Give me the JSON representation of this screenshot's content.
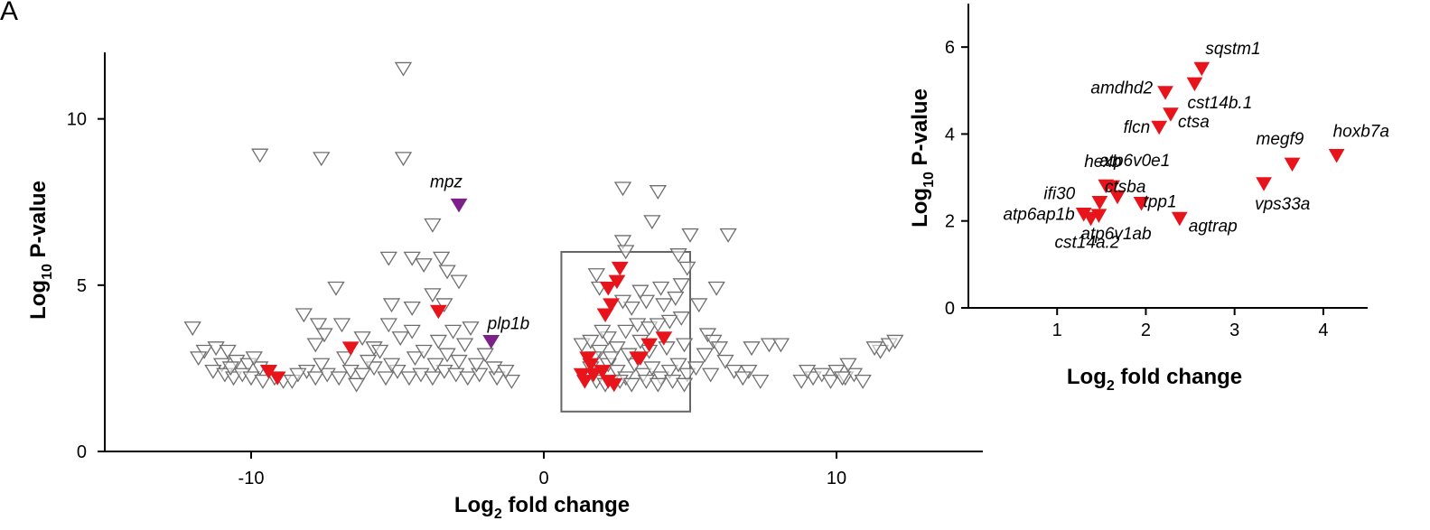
{
  "panel_label": "A",
  "chart_data": [
    {
      "type": "scatter",
      "title": "",
      "xlabel": {
        "main": "Log",
        "sub": "2",
        "rest": " fold change"
      },
      "ylabel": {
        "main": "Log",
        "sub": "10",
        "rest": " P-value"
      },
      "xlim": [
        -15,
        15
      ],
      "ylim": [
        0,
        12
      ],
      "xticks": [
        -10,
        0,
        10
      ],
      "xtick_labels": [
        "-10",
        "0",
        "10"
      ],
      "yticks": [
        0,
        5,
        10
      ],
      "ytick_labels": [
        "0",
        "5",
        "10"
      ],
      "highlight_box": {
        "x": [
          0.6,
          5.0
        ],
        "y": [
          1.2,
          6.0
        ]
      },
      "series": [
        {
          "marker": "open-triangle-down",
          "color": "#6e6e6e",
          "points": [
            [
              -4.8,
              11.5
            ],
            [
              -9.7,
              8.9
            ],
            [
              -7.6,
              8.8
            ],
            [
              -4.8,
              8.8
            ],
            [
              -3.8,
              6.8
            ],
            [
              -5.3,
              5.8
            ],
            [
              -4.5,
              5.8
            ],
            [
              -3.5,
              5.8
            ],
            [
              -3.3,
              5.4
            ],
            [
              -4.1,
              5.6
            ],
            [
              -2.9,
              5.1
            ],
            [
              -7.1,
              4.9
            ],
            [
              -3.8,
              4.7
            ],
            [
              -5.2,
              4.4
            ],
            [
              -4.5,
              4.3
            ],
            [
              -3.4,
              4.4
            ],
            [
              -8.2,
              4.1
            ],
            [
              -6.9,
              3.8
            ],
            [
              -7.7,
              3.8
            ],
            [
              -5.3,
              3.8
            ],
            [
              -4.5,
              3.6
            ],
            [
              -3.1,
              3.6
            ],
            [
              -2.5,
              3.7
            ],
            [
              -7.5,
              3.5
            ],
            [
              -6.2,
              3.4
            ],
            [
              -4.9,
              3.4
            ],
            [
              -3.6,
              3.3
            ],
            [
              -2.7,
              3.2
            ],
            [
              -7.8,
              3.2
            ],
            [
              -5.8,
              3.1
            ],
            [
              -12.0,
              3.7
            ],
            [
              -11.6,
              3.0
            ],
            [
              -11.2,
              3.1
            ],
            [
              -10.8,
              3.0
            ],
            [
              -11.8,
              2.8
            ],
            [
              -11.0,
              2.6
            ],
            [
              -10.5,
              2.7
            ],
            [
              -10.1,
              2.6
            ],
            [
              -9.7,
              2.5
            ],
            [
              -9.4,
              2.4
            ],
            [
              -11.3,
              2.4
            ],
            [
              -10.9,
              2.3
            ],
            [
              -10.6,
              2.2
            ],
            [
              -10.3,
              2.3
            ],
            [
              -10.0,
              2.2
            ],
            [
              -9.6,
              2.1
            ],
            [
              -9.2,
              2.2
            ],
            [
              -8.9,
              2.1
            ],
            [
              -8.6,
              2.1
            ],
            [
              -9.9,
              2.8
            ],
            [
              -10.7,
              2.5
            ],
            [
              -8.1,
              2.4
            ],
            [
              -7.8,
              2.2
            ],
            [
              -7.4,
              2.3
            ],
            [
              -7.0,
              2.2
            ],
            [
              -6.6,
              2.4
            ],
            [
              -6.2,
              2.3
            ],
            [
              -5.8,
              2.5
            ],
            [
              -5.4,
              2.2
            ],
            [
              -5.0,
              2.4
            ],
            [
              -4.6,
              2.2
            ],
            [
              -4.2,
              2.3
            ],
            [
              -3.8,
              2.2
            ],
            [
              -3.4,
              2.4
            ],
            [
              -3.0,
              2.3
            ],
            [
              -2.6,
              2.2
            ],
            [
              -2.2,
              2.3
            ],
            [
              -1.6,
              2.2
            ],
            [
              -1.1,
              2.1
            ],
            [
              -6.0,
              2.7
            ],
            [
              -5.2,
              2.6
            ],
            [
              -4.4,
              2.8
            ],
            [
              -3.7,
              2.6
            ],
            [
              -2.9,
              2.7
            ],
            [
              -2.3,
              2.6
            ],
            [
              -6.8,
              2.8
            ],
            [
              -7.6,
              2.6
            ],
            [
              -5.6,
              3.0
            ],
            [
              -4.1,
              3.0
            ],
            [
              -3.3,
              2.9
            ],
            [
              -2.0,
              2.9
            ],
            [
              -1.7,
              2.5
            ],
            [
              -1.3,
              2.4
            ],
            [
              -8.4,
              2.3
            ],
            [
              -6.4,
              2.0
            ],
            [
              1.3,
              3.2
            ],
            [
              1.6,
              3.3
            ],
            [
              1.9,
              3.0
            ],
            [
              2.2,
              3.4
            ],
            [
              2.5,
              3.1
            ],
            [
              2.8,
              3.6
            ],
            [
              3.2,
              3.8
            ],
            [
              3.6,
              3.7
            ],
            [
              3.9,
              3.8
            ],
            [
              4.3,
              3.9
            ],
            [
              4.7,
              4.0
            ],
            [
              3.0,
              4.3
            ],
            [
              3.5,
              4.5
            ],
            [
              4.1,
              4.4
            ],
            [
              4.5,
              4.6
            ],
            [
              3.3,
              4.8
            ],
            [
              4.0,
              4.9
            ],
            [
              4.7,
              5.0
            ],
            [
              4.9,
              5.5
            ],
            [
              4.6,
              5.9
            ],
            [
              2.7,
              4.5
            ],
            [
              1.6,
              2.5
            ],
            [
              1.9,
              2.3
            ],
            [
              2.2,
              2.6
            ],
            [
              2.5,
              2.4
            ],
            [
              2.8,
              2.2
            ],
            [
              3.1,
              2.6
            ],
            [
              3.4,
              2.3
            ],
            [
              3.7,
              2.5
            ],
            [
              4.0,
              2.2
            ],
            [
              4.3,
              2.4
            ],
            [
              4.6,
              2.6
            ],
            [
              4.9,
              2.3
            ],
            [
              1.4,
              2.2
            ],
            [
              1.8,
              2.1
            ],
            [
              2.1,
              2.0
            ],
            [
              2.6,
              2.1
            ],
            [
              3.0,
              2.0
            ],
            [
              3.5,
              2.1
            ],
            [
              3.9,
              2.0
            ],
            [
              4.4,
              2.1
            ],
            [
              4.8,
              2.0
            ],
            [
              2.3,
              2.8
            ],
            [
              2.9,
              2.9
            ],
            [
              3.6,
              3.0
            ],
            [
              4.2,
              3.1
            ],
            [
              4.8,
              3.2
            ],
            [
              3.3,
              3.3
            ],
            [
              2.0,
              3.6
            ],
            [
              1.7,
              2.8
            ],
            [
              2.7,
              7.9
            ],
            [
              3.9,
              7.8
            ],
            [
              3.7,
              6.9
            ],
            [
              2.7,
              6.3
            ],
            [
              2.8,
              6.0
            ],
            [
              5.0,
              6.5
            ],
            [
              6.3,
              6.5
            ],
            [
              1.8,
              5.3
            ],
            [
              1.9,
              4.9
            ],
            [
              5.9,
              4.9
            ],
            [
              5.3,
              4.4
            ],
            [
              5.6,
              3.5
            ],
            [
              5.8,
              3.3
            ],
            [
              6.0,
              3.1
            ],
            [
              5.5,
              2.9
            ],
            [
              6.2,
              2.7
            ],
            [
              5.2,
              2.5
            ],
            [
              5.7,
              2.3
            ],
            [
              6.5,
              2.4
            ],
            [
              7.1,
              3.1
            ],
            [
              7.7,
              3.2
            ],
            [
              8.1,
              3.2
            ],
            [
              7.0,
              2.4
            ],
            [
              6.8,
              2.2
            ],
            [
              7.4,
              2.1
            ],
            [
              8.8,
              2.1
            ],
            [
              9.2,
              2.2
            ],
            [
              9.5,
              2.3
            ],
            [
              9.8,
              2.1
            ],
            [
              10.0,
              2.4
            ],
            [
              10.3,
              2.2
            ],
            [
              10.6,
              2.3
            ],
            [
              10.9,
              2.1
            ],
            [
              10.4,
              2.6
            ],
            [
              11.5,
              3.0
            ],
            [
              11.8,
              3.2
            ],
            [
              12.0,
              3.3
            ],
            [
              9.0,
              2.4
            ],
            [
              10.2,
              2.2
            ],
            [
              11.3,
              3.1
            ]
          ]
        },
        {
          "marker": "filled-triangle-down",
          "color": "#e8141b",
          "points": [
            [
              -6.6,
              3.1
            ],
            [
              -3.6,
              4.2
            ],
            [
              -9.4,
              2.4
            ],
            [
              -9.1,
              2.2
            ],
            [
              2.6,
              5.5
            ],
            [
              2.2,
              4.9
            ],
            [
              2.5,
              5.1
            ],
            [
              2.3,
              4.4
            ],
            [
              2.1,
              4.1
            ],
            [
              4.1,
              3.4
            ],
            [
              3.6,
              3.2
            ],
            [
              3.3,
              2.8
            ],
            [
              3.2,
              2.8
            ],
            [
              1.5,
              2.8
            ],
            [
              1.6,
              2.6
            ],
            [
              1.7,
              2.3
            ],
            [
              2.0,
              2.4
            ],
            [
              2.2,
              2.1
            ],
            [
              2.4,
              2.0
            ],
            [
              1.4,
              2.1
            ],
            [
              1.3,
              2.3
            ]
          ]
        },
        {
          "marker": "filled-triangle-down",
          "color": "#7b2187",
          "points": [
            [
              -2.9,
              7.4
            ],
            [
              -1.8,
              3.3
            ]
          ]
        }
      ],
      "annotations": [
        {
          "text": "mpz",
          "x": -2.9,
          "y": 7.4
        },
        {
          "text": "plp1b",
          "x": -1.8,
          "y": 3.3
        }
      ]
    },
    {
      "type": "scatter",
      "title": "",
      "xlabel": {
        "main": "Log",
        "sub": "2",
        "rest": " fold change"
      },
      "ylabel": {
        "main": "Log",
        "sub": "10",
        "rest": " P-value"
      },
      "xlim": [
        0,
        4.5
      ],
      "ylim": [
        0,
        7
      ],
      "xticks": [
        1,
        2,
        3,
        4
      ],
      "xtick_labels": [
        "1",
        "2",
        "3",
        "4"
      ],
      "yticks": [
        0,
        2,
        4,
        6
      ],
      "ytick_labels": [
        "0",
        "2",
        "4",
        "6"
      ],
      "series": [
        {
          "marker": "filled-triangle-down",
          "color": "#e8141b",
          "points": [
            {
              "gene": "sqstm1",
              "x": 2.63,
              "y": 5.5
            },
            {
              "gene": "cst14b.1",
              "x": 2.55,
              "y": 5.15
            },
            {
              "gene": "amdhd2",
              "x": 2.22,
              "y": 4.95
            },
            {
              "gene": "ctsa",
              "x": 2.28,
              "y": 4.45
            },
            {
              "gene": "flcn",
              "x": 2.15,
              "y": 4.15
            },
            {
              "gene": "hoxb7a",
              "x": 4.15,
              "y": 3.5
            },
            {
              "gene": "megf9",
              "x": 3.65,
              "y": 3.3
            },
            {
              "gene": "vps33a",
              "x": 3.33,
              "y": 2.85
            },
            {
              "gene": "hexb",
              "x": 1.55,
              "y": 2.8
            },
            {
              "gene": "atp6v0e1",
              "x": 1.62,
              "y": 2.78
            },
            {
              "gene": "ctsba",
              "x": 1.68,
              "y": 2.55
            },
            {
              "gene": "ifi30",
              "x": 1.48,
              "y": 2.42
            },
            {
              "gene": "tpp1",
              "x": 1.95,
              "y": 2.4
            },
            {
              "gene": "atp6ap1b",
              "x": 1.3,
              "y": 2.15
            },
            {
              "gene": "cst14a.2",
              "x": 1.38,
              "y": 2.05
            },
            {
              "gene": "atp6v1ab",
              "x": 1.47,
              "y": 2.12
            },
            {
              "gene": "agtrap",
              "x": 2.38,
              "y": 2.05
            }
          ]
        }
      ]
    }
  ],
  "colors": {
    "open_marker": "#6e6e6e",
    "red": "#e8141b",
    "purple": "#7b2187",
    "box": "#666666"
  }
}
